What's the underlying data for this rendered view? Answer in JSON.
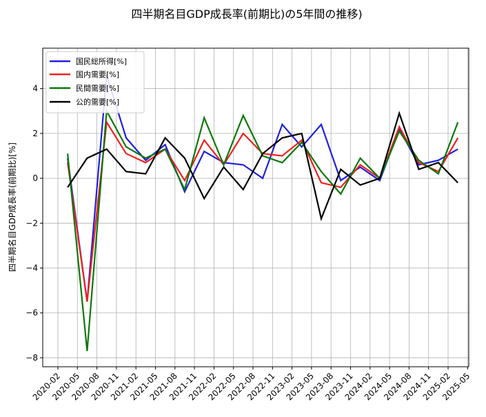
{
  "chart_data": {
    "type": "line",
    "title": "四半期名目GDP成長率(前期比)の5年間の推移)",
    "xlabel": "",
    "ylabel": "四半期名目GDP成長率(前期比)[%]",
    "ylim": [
      -8.4,
      5.8
    ],
    "yticks": [
      -8,
      -6,
      -4,
      -2,
      0,
      2,
      4
    ],
    "ytick_labels": [
      "−8",
      "−6",
      "−4",
      "−2",
      "0",
      "2",
      "4"
    ],
    "xticks": [
      "2020-02",
      "2020-05",
      "2020-08",
      "2020-11",
      "2021-02",
      "2021-05",
      "2021-08",
      "2021-11",
      "2022-02",
      "2022-05",
      "2022-08",
      "2022-11",
      "2023-02",
      "2023-05",
      "2023-08",
      "2023-11",
      "2024-02",
      "2024-05",
      "2024-08",
      "2024-11",
      "2025-02",
      "2025-05"
    ],
    "x_points": [
      "2020-03",
      "2020-06",
      "2020-09",
      "2020-12",
      "2021-03",
      "2021-06",
      "2021-09",
      "2021-12",
      "2022-03",
      "2022-06",
      "2022-09",
      "2022-12",
      "2023-03",
      "2023-06",
      "2023-09",
      "2023-12",
      "2024-03",
      "2024-06",
      "2024-09",
      "2024-12",
      "2025-03"
    ],
    "grid": true,
    "legend_position": "top-left",
    "series": [
      {
        "name": "国民総所得[%]",
        "color": "#1f1fe0",
        "values": [
          0.9,
          -5.5,
          4.6,
          1.8,
          0.8,
          1.5,
          -0.6,
          1.2,
          0.7,
          0.6,
          0.0,
          2.4,
          1.4,
          2.4,
          -0.1,
          0.5,
          -0.1,
          2.2,
          0.6,
          0.8,
          1.3
        ]
      },
      {
        "name": "国内需要[%]",
        "color": "#f02020",
        "values": [
          0.7,
          -5.5,
          2.5,
          1.1,
          0.7,
          1.3,
          -0.1,
          1.7,
          0.6,
          2.0,
          1.1,
          1.0,
          1.7,
          -0.2,
          -0.4,
          0.6,
          0.0,
          2.3,
          0.7,
          0.3,
          1.8
        ]
      },
      {
        "name": "民間需要[%]",
        "color": "#0a780a",
        "values": [
          1.1,
          -7.7,
          3.0,
          1.4,
          0.9,
          1.3,
          -0.5,
          2.7,
          0.6,
          2.8,
          1.0,
          0.7,
          1.6,
          0.3,
          -0.7,
          0.9,
          0.0,
          2.1,
          0.8,
          0.2,
          2.5
        ]
      },
      {
        "name": "公的需要[%]",
        "color": "#000000",
        "values": [
          -0.4,
          0.9,
          1.3,
          0.3,
          0.2,
          1.8,
          0.9,
          -0.9,
          0.5,
          -0.5,
          1.1,
          1.8,
          2.0,
          -1.8,
          0.4,
          -0.3,
          0.0,
          2.9,
          0.4,
          0.7,
          -0.2
        ]
      }
    ]
  }
}
